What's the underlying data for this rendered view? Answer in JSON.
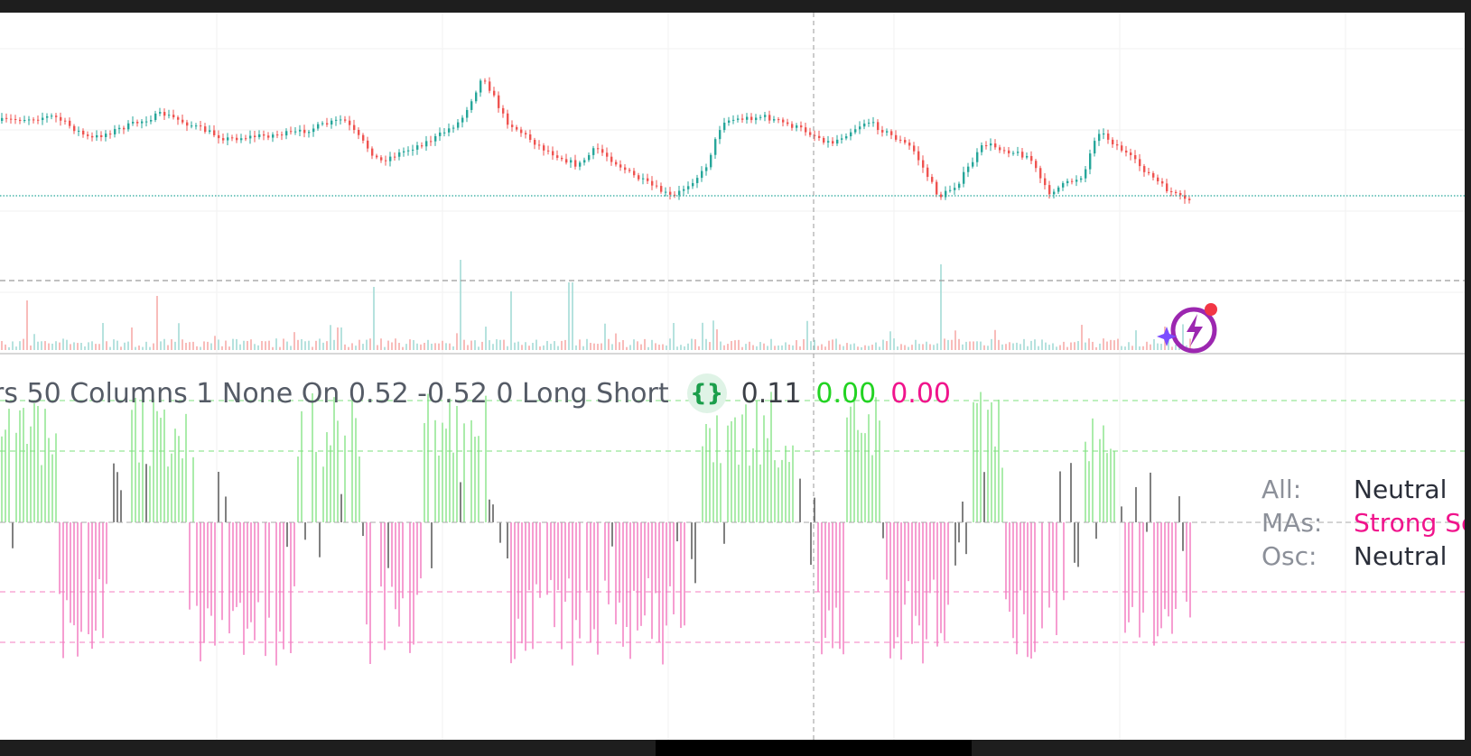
{
  "indicator_legend": {
    "params_text": "rs 50 Columns 1 None On 0.52 -0.52 0 Long Short",
    "code_icon_glyph": "{}",
    "values": [
      "0.11",
      "0.00",
      "0.00"
    ]
  },
  "ta_summary": {
    "rows": [
      {
        "label": "All:",
        "value": "Neutral"
      },
      {
        "label": "MAs:",
        "value": "Strong Se"
      },
      {
        "label": "Osc:",
        "value": "Neutral"
      }
    ]
  },
  "icons": {
    "code": "code-braces-icon",
    "assistant": "ai-assistant-icon"
  },
  "colors": {
    "up": "#26a69a",
    "down": "#ef5350",
    "bull_hist": "#7ee27e",
    "bear_hist": "#f06ab8",
    "neutral_hist": "#3b3b3b",
    "current_price_line": "#26a69a",
    "accent_purple": "#9c27b0",
    "alert_dot": "#f23645"
  }
}
